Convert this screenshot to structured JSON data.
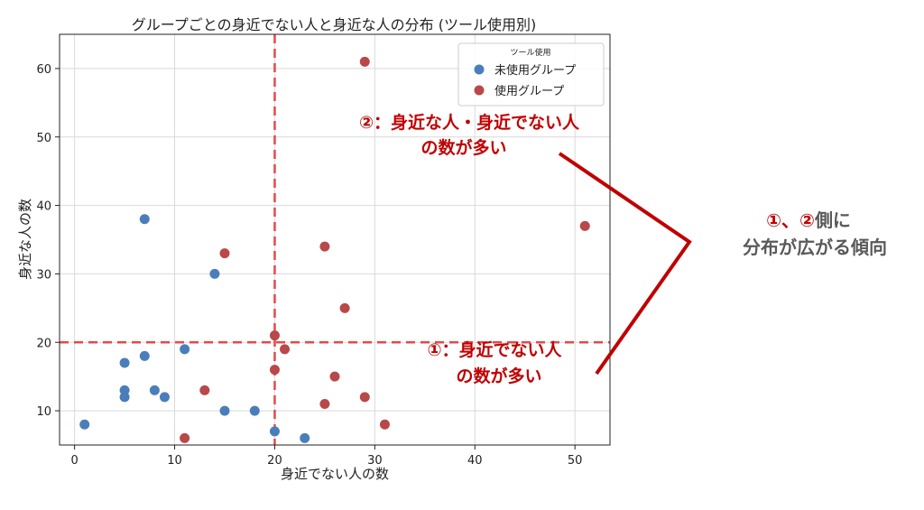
{
  "colors": {
    "unused": "#4a7ebb",
    "used": "#b94848",
    "guide": "#e84848",
    "annotation_red": "#c00000",
    "annotation_gray": "#595959",
    "bracket": "#c00000"
  },
  "chart_data": {
    "type": "scatter",
    "title": "グループごとの身近でない人と身近な人の分布 (ツール使用別)",
    "xlabel": "身近でない人の数",
    "ylabel": "身近な人の数",
    "xlim": [
      -1.5,
      53.5
    ],
    "ylim": [
      5,
      65
    ],
    "xticks": [
      0,
      10,
      20,
      30,
      40,
      50
    ],
    "yticks": [
      10,
      20,
      30,
      40,
      50,
      60
    ],
    "grid": true,
    "legend": {
      "title": "ツール使用",
      "placement": "top-right"
    },
    "reference_lines": {
      "x": 20,
      "y": 20
    },
    "series": [
      {
        "name": "未使用グループ",
        "color": "#4a7ebb",
        "points": [
          [
            1,
            8
          ],
          [
            5,
            17
          ],
          [
            5,
            13
          ],
          [
            5,
            12
          ],
          [
            7,
            38
          ],
          [
            7,
            18
          ],
          [
            8,
            13
          ],
          [
            9,
            12
          ],
          [
            11,
            19
          ],
          [
            14,
            30
          ],
          [
            15,
            10
          ],
          [
            18,
            10
          ],
          [
            20,
            7
          ],
          [
            23,
            6
          ]
        ]
      },
      {
        "name": "使用グループ",
        "color": "#b94848",
        "points": [
          [
            11,
            6
          ],
          [
            13,
            13
          ],
          [
            15,
            33
          ],
          [
            20,
            21
          ],
          [
            20,
            16
          ],
          [
            21,
            19
          ],
          [
            25,
            34
          ],
          [
            25,
            11
          ],
          [
            26,
            15
          ],
          [
            27,
            25
          ],
          [
            29,
            61
          ],
          [
            29,
            12
          ],
          [
            31,
            8
          ],
          [
            51,
            37
          ]
        ]
      }
    ]
  },
  "annotations": {
    "top_line1": "②：身近な人・身近でない人",
    "top_line2": "の数が多い",
    "bottom_line1": "①：身近でない人",
    "bottom_line2": "の数が多い",
    "side_line1_a": "①、②",
    "side_line1_b": "側に",
    "side_line2": "分布が広がる傾向"
  }
}
